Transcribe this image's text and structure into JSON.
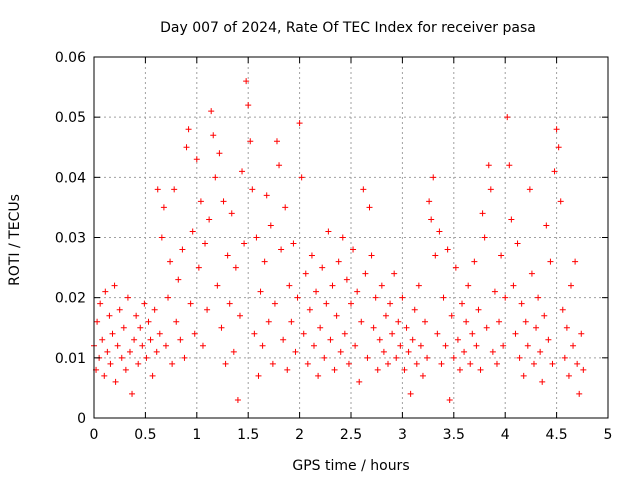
{
  "chart_data": {
    "type": "scatter",
    "title": "Day 007 of 2024, Rate Of TEC Index for receiver pasa",
    "xlabel": "GPS time / hours",
    "ylabel": "ROTI / TECUs",
    "xlim": [
      0,
      5
    ],
    "ylim": [
      0,
      0.06
    ],
    "x_ticks": [
      0,
      0.5,
      1,
      1.5,
      2,
      2.5,
      3,
      3.5,
      4,
      4.5,
      5
    ],
    "x_tick_labels": [
      "0",
      "0.5",
      "1",
      "1.5",
      "2",
      "2.5",
      "3",
      "3.5",
      "4",
      "4.5",
      "5"
    ],
    "y_ticks": [
      0,
      0.01,
      0.02,
      0.03,
      0.04,
      0.05,
      0.06
    ],
    "y_tick_labels": [
      "0",
      "0.01",
      "0.02",
      "0.03",
      "0.04",
      "0.05",
      "0.06"
    ],
    "grid": true,
    "marker": "plus",
    "color": "#ff0000",
    "series": [
      {
        "name": "ROTI",
        "points": [
          [
            0.0,
            0.012
          ],
          [
            0.02,
            0.008
          ],
          [
            0.03,
            0.016
          ],
          [
            0.05,
            0.01
          ],
          [
            0.06,
            0.019
          ],
          [
            0.08,
            0.013
          ],
          [
            0.1,
            0.007
          ],
          [
            0.11,
            0.021
          ],
          [
            0.13,
            0.011
          ],
          [
            0.15,
            0.017
          ],
          [
            0.16,
            0.009
          ],
          [
            0.18,
            0.014
          ],
          [
            0.2,
            0.022
          ],
          [
            0.21,
            0.006
          ],
          [
            0.23,
            0.012
          ],
          [
            0.25,
            0.018
          ],
          [
            0.27,
            0.01
          ],
          [
            0.29,
            0.015
          ],
          [
            0.31,
            0.008
          ],
          [
            0.33,
            0.02
          ],
          [
            0.35,
            0.011
          ],
          [
            0.37,
            0.004
          ],
          [
            0.39,
            0.013
          ],
          [
            0.41,
            0.017
          ],
          [
            0.43,
            0.009
          ],
          [
            0.45,
            0.015
          ],
          [
            0.47,
            0.012
          ],
          [
            0.49,
            0.019
          ],
          [
            0.51,
            0.01
          ],
          [
            0.53,
            0.016
          ],
          [
            0.55,
            0.013
          ],
          [
            0.57,
            0.007
          ],
          [
            0.59,
            0.018
          ],
          [
            0.61,
            0.011
          ],
          [
            0.62,
            0.038
          ],
          [
            0.64,
            0.014
          ],
          [
            0.66,
            0.03
          ],
          [
            0.68,
            0.035
          ],
          [
            0.7,
            0.012
          ],
          [
            0.72,
            0.02
          ],
          [
            0.74,
            0.026
          ],
          [
            0.76,
            0.009
          ],
          [
            0.78,
            0.038
          ],
          [
            0.8,
            0.016
          ],
          [
            0.82,
            0.023
          ],
          [
            0.84,
            0.013
          ],
          [
            0.86,
            0.028
          ],
          [
            0.88,
            0.01
          ],
          [
            0.9,
            0.045
          ],
          [
            0.92,
            0.048
          ],
          [
            0.94,
            0.019
          ],
          [
            0.96,
            0.031
          ],
          [
            0.98,
            0.014
          ],
          [
            1.0,
            0.043
          ],
          [
            1.02,
            0.025
          ],
          [
            1.04,
            0.036
          ],
          [
            1.06,
            0.012
          ],
          [
            1.08,
            0.029
          ],
          [
            1.1,
            0.018
          ],
          [
            1.12,
            0.033
          ],
          [
            1.14,
            0.051
          ],
          [
            1.16,
            0.047
          ],
          [
            1.18,
            0.04
          ],
          [
            1.2,
            0.022
          ],
          [
            1.22,
            0.044
          ],
          [
            1.24,
            0.015
          ],
          [
            1.26,
            0.036
          ],
          [
            1.28,
            0.009
          ],
          [
            1.3,
            0.027
          ],
          [
            1.32,
            0.019
          ],
          [
            1.34,
            0.034
          ],
          [
            1.36,
            0.011
          ],
          [
            1.38,
            0.025
          ],
          [
            1.4,
            0.003
          ],
          [
            1.42,
            0.017
          ],
          [
            1.44,
            0.041
          ],
          [
            1.46,
            0.029
          ],
          [
            1.48,
            0.056
          ],
          [
            1.5,
            0.052
          ],
          [
            1.52,
            0.046
          ],
          [
            1.54,
            0.038
          ],
          [
            1.56,
            0.014
          ],
          [
            1.58,
            0.03
          ],
          [
            1.6,
            0.007
          ],
          [
            1.62,
            0.021
          ],
          [
            1.64,
            0.012
          ],
          [
            1.66,
            0.026
          ],
          [
            1.68,
            0.037
          ],
          [
            1.7,
            0.016
          ],
          [
            1.72,
            0.032
          ],
          [
            1.74,
            0.009
          ],
          [
            1.76,
            0.019
          ],
          [
            1.78,
            0.046
          ],
          [
            1.8,
            0.042
          ],
          [
            1.82,
            0.028
          ],
          [
            1.84,
            0.013
          ],
          [
            1.86,
            0.035
          ],
          [
            1.88,
            0.008
          ],
          [
            1.9,
            0.022
          ],
          [
            1.92,
            0.016
          ],
          [
            1.94,
            0.029
          ],
          [
            1.96,
            0.011
          ],
          [
            1.98,
            0.02
          ],
          [
            2.0,
            0.049
          ],
          [
            2.02,
            0.04
          ],
          [
            2.04,
            0.014
          ],
          [
            2.06,
            0.024
          ],
          [
            2.08,
            0.009
          ],
          [
            2.1,
            0.018
          ],
          [
            2.12,
            0.027
          ],
          [
            2.14,
            0.012
          ],
          [
            2.16,
            0.021
          ],
          [
            2.18,
            0.007
          ],
          [
            2.2,
            0.015
          ],
          [
            2.22,
            0.025
          ],
          [
            2.24,
            0.01
          ],
          [
            2.26,
            0.019
          ],
          [
            2.28,
            0.031
          ],
          [
            2.3,
            0.013
          ],
          [
            2.32,
            0.022
          ],
          [
            2.34,
            0.008
          ],
          [
            2.36,
            0.017
          ],
          [
            2.38,
            0.026
          ],
          [
            2.4,
            0.011
          ],
          [
            2.42,
            0.03
          ],
          [
            2.44,
            0.014
          ],
          [
            2.46,
            0.023
          ],
          [
            2.48,
            0.009
          ],
          [
            2.5,
            0.019
          ],
          [
            2.52,
            0.028
          ],
          [
            2.54,
            0.012
          ],
          [
            2.56,
            0.021
          ],
          [
            2.58,
            0.006
          ],
          [
            2.6,
            0.016
          ],
          [
            2.62,
            0.038
          ],
          [
            2.64,
            0.024
          ],
          [
            2.66,
            0.01
          ],
          [
            2.68,
            0.035
          ],
          [
            2.7,
            0.027
          ],
          [
            2.72,
            0.015
          ],
          [
            2.74,
            0.02
          ],
          [
            2.76,
            0.008
          ],
          [
            2.78,
            0.013
          ],
          [
            2.8,
            0.022
          ],
          [
            2.82,
            0.011
          ],
          [
            2.84,
            0.017
          ],
          [
            2.86,
            0.009
          ],
          [
            2.88,
            0.019
          ],
          [
            2.9,
            0.014
          ],
          [
            2.92,
            0.024
          ],
          [
            2.94,
            0.01
          ],
          [
            2.96,
            0.016
          ],
          [
            2.98,
            0.012
          ],
          [
            3.0,
            0.02
          ],
          [
            3.02,
            0.008
          ],
          [
            3.04,
            0.015
          ],
          [
            3.06,
            0.011
          ],
          [
            3.08,
            0.004
          ],
          [
            3.1,
            0.013
          ],
          [
            3.12,
            0.018
          ],
          [
            3.14,
            0.009
          ],
          [
            3.16,
            0.022
          ],
          [
            3.18,
            0.012
          ],
          [
            3.2,
            0.007
          ],
          [
            3.22,
            0.016
          ],
          [
            3.24,
            0.01
          ],
          [
            3.26,
            0.036
          ],
          [
            3.28,
            0.033
          ],
          [
            3.3,
            0.04
          ],
          [
            3.32,
            0.027
          ],
          [
            3.34,
            0.014
          ],
          [
            3.36,
            0.031
          ],
          [
            3.38,
            0.009
          ],
          [
            3.4,
            0.02
          ],
          [
            3.42,
            0.012
          ],
          [
            3.44,
            0.028
          ],
          [
            3.46,
            0.003
          ],
          [
            3.48,
            0.017
          ],
          [
            3.5,
            0.01
          ],
          [
            3.52,
            0.025
          ],
          [
            3.54,
            0.013
          ],
          [
            3.56,
            0.008
          ],
          [
            3.58,
            0.019
          ],
          [
            3.6,
            0.011
          ],
          [
            3.62,
            0.016
          ],
          [
            3.64,
            0.022
          ],
          [
            3.66,
            0.009
          ],
          [
            3.68,
            0.014
          ],
          [
            3.7,
            0.026
          ],
          [
            3.72,
            0.012
          ],
          [
            3.74,
            0.018
          ],
          [
            3.76,
            0.008
          ],
          [
            3.78,
            0.034
          ],
          [
            3.8,
            0.03
          ],
          [
            3.82,
            0.015
          ],
          [
            3.84,
            0.042
          ],
          [
            3.86,
            0.038
          ],
          [
            3.88,
            0.011
          ],
          [
            3.9,
            0.021
          ],
          [
            3.92,
            0.009
          ],
          [
            3.94,
            0.016
          ],
          [
            3.96,
            0.027
          ],
          [
            3.98,
            0.012
          ],
          [
            4.0,
            0.02
          ],
          [
            4.02,
            0.05
          ],
          [
            4.04,
            0.042
          ],
          [
            4.06,
            0.033
          ],
          [
            4.08,
            0.022
          ],
          [
            4.1,
            0.014
          ],
          [
            4.12,
            0.029
          ],
          [
            4.14,
            0.01
          ],
          [
            4.16,
            0.019
          ],
          [
            4.18,
            0.007
          ],
          [
            4.2,
            0.016
          ],
          [
            4.22,
            0.012
          ],
          [
            4.24,
            0.038
          ],
          [
            4.26,
            0.024
          ],
          [
            4.28,
            0.009
          ],
          [
            4.3,
            0.015
          ],
          [
            4.32,
            0.02
          ],
          [
            4.34,
            0.011
          ],
          [
            4.36,
            0.006
          ],
          [
            4.38,
            0.017
          ],
          [
            4.4,
            0.032
          ],
          [
            4.42,
            0.013
          ],
          [
            4.44,
            0.026
          ],
          [
            4.46,
            0.009
          ],
          [
            4.48,
            0.041
          ],
          [
            4.5,
            0.048
          ],
          [
            4.52,
            0.045
          ],
          [
            4.54,
            0.036
          ],
          [
            4.56,
            0.018
          ],
          [
            4.58,
            0.01
          ],
          [
            4.6,
            0.015
          ],
          [
            4.62,
            0.007
          ],
          [
            4.64,
            0.022
          ],
          [
            4.66,
            0.012
          ],
          [
            4.68,
            0.026
          ],
          [
            4.7,
            0.009
          ],
          [
            4.72,
            0.004
          ],
          [
            4.74,
            0.014
          ],
          [
            4.76,
            0.008
          ]
        ]
      }
    ]
  }
}
